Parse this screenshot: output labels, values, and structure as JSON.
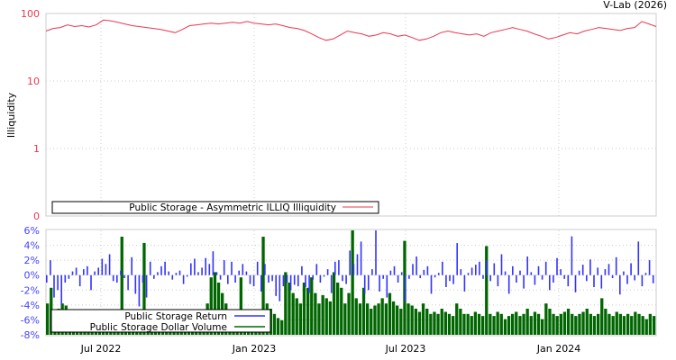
{
  "chart_data": [
    {
      "type": "line",
      "title": "",
      "credit": "V-Lab (2026)",
      "ylabel": "Illiquidity",
      "yscale": "log",
      "yticks": [
        "100",
        "10",
        "1",
        "0"
      ],
      "xticks": [
        "Jul 2022",
        "Jan 2023",
        "Jul 2023",
        "Jan 2024"
      ],
      "legend": "Public Storage - Asymmetric ILLIQ Illiquidity",
      "legend_position": "bottom-left",
      "grid": true,
      "color": "#e8384f",
      "values": [
        55,
        60,
        62,
        68,
        64,
        66,
        63,
        68,
        80,
        78,
        74,
        70,
        66,
        64,
        62,
        60,
        58,
        55,
        52,
        58,
        66,
        68,
        70,
        72,
        70,
        72,
        74,
        72,
        76,
        72,
        70,
        68,
        70,
        66,
        62,
        60,
        56,
        50,
        44,
        40,
        42,
        48,
        55,
        52,
        50,
        46,
        48,
        52,
        50,
        46,
        48,
        44,
        40,
        42,
        46,
        52,
        55,
        52,
        50,
        48,
        50,
        46,
        52,
        55,
        58,
        62,
        58,
        55,
        50,
        46,
        42,
        44,
        48,
        52,
        50,
        55,
        58,
        62,
        60,
        58,
        56,
        60,
        62,
        76,
        70,
        64
      ]
    },
    {
      "type": "bar",
      "yticks": [
        "6%",
        "4%",
        "2%",
        "0%",
        "-2%",
        "-4%",
        "-6%",
        "-8%"
      ],
      "ylim": [
        -8,
        6
      ],
      "xticks": [
        "Jul 2022",
        "Jan 2023",
        "Jul 2023",
        "Jan 2024"
      ],
      "grid": true,
      "series": [
        {
          "name": "Public Storage Return",
          "color": "#3333ff",
          "values": [
            -1,
            2,
            -3,
            -2,
            -4,
            -1,
            -0.5,
            0.5,
            1,
            -1.5,
            0.8,
            1.2,
            -2,
            0.5,
            1,
            2.2,
            1.5,
            2.8,
            -0.8,
            -1,
            0.6,
            -0.4,
            -2,
            2.4,
            -2.5,
            -4.2,
            -1,
            -3,
            1.8,
            -0.5,
            0.4,
            1.2,
            1.8,
            0.5,
            -0.6,
            0.3,
            0.6,
            -1.2,
            -0.2,
            1.6,
            2.2,
            0.4,
            1,
            2.3,
            1.5,
            3.2,
            0.4,
            -0.6,
            2,
            -1.2,
            1.8,
            -1,
            0.6,
            1.5,
            0.5,
            -1.2,
            -1.5,
            1.8,
            -2.2,
            1.5,
            -1,
            -0.8,
            -2.8,
            -3.5,
            -1.5,
            -1,
            -2,
            -1.3,
            -1.5,
            1.2,
            -1.6,
            -2.4,
            -0.6,
            1.5,
            -1,
            -0.2,
            0.8,
            -2.4,
            1.8,
            2,
            -0.8,
            -1.2,
            3.3,
            1.5,
            2.8,
            4.5,
            -2.5,
            -2,
            0.8,
            6,
            -2.2,
            -0.5,
            -3,
            0.6,
            1.2,
            -1,
            0.4,
            -3.5,
            -0.5,
            1.5,
            2.5,
            -0.4,
            0.7,
            1.2,
            -2.5,
            -0.3,
            0.3,
            1.8,
            -1.6,
            -0.8,
            -1.2,
            4.3,
            0.8,
            -2.2,
            0.3,
            1,
            1.4,
            1.8,
            -0.5,
            2,
            -0.8,
            1.6,
            -1.5,
            2.8,
            0.5,
            -2.5,
            1.2,
            -1,
            0.6,
            -1.8,
            2.5,
            0.4,
            -1.3,
            1.2,
            -0.6,
            1.8,
            -2,
            -1,
            2.3,
            0.8,
            -0.5,
            -1.5,
            5.2,
            -2.3,
            0.6,
            1.4,
            -0.8,
            2.1,
            -1.6,
            1,
            -1.8,
            0.8,
            1.5,
            -0.4,
            2.4,
            -2.6,
            0.5,
            -1.2,
            1.6,
            -0.7,
            4.5,
            -1.5,
            0.3,
            2,
            -1.1
          ]
        },
        {
          "name": "Public Storage Dollar Volume",
          "color": "#006600",
          "values_relative": [
            0.3,
            0.45,
            0.2,
            0.25,
            0.3,
            0.28,
            0.2,
            0.15,
            0.18,
            0.22,
            0.14,
            0.2,
            0.16,
            0.12,
            0.18,
            0.2,
            0.15,
            0.13,
            0.17,
            0.2,
            0.94,
            0.15,
            0.12,
            0.18,
            0.14,
            0.2,
            0.88,
            0.16,
            0.15,
            0.13,
            0.18,
            0.14,
            0.2,
            0.12,
            0.15,
            0.18,
            0.13,
            0.2,
            0.15,
            0.12,
            0.17,
            0.2,
            0.14,
            0.3,
            0.55,
            0.6,
            0.5,
            0.4,
            0.3,
            0.18,
            0.15,
            0.12,
            0.55,
            0.2,
            0.15,
            0.12,
            0.18,
            0.22,
            0.94,
            0.3,
            0.25,
            0.2,
            0.16,
            0.14,
            0.6,
            0.5,
            0.4,
            0.35,
            0.3,
            0.5,
            0.45,
            0.55,
            0.4,
            0.3,
            0.38,
            0.35,
            0.32,
            0.6,
            0.5,
            0.45,
            0.3,
            0.4,
            1,
            0.35,
            0.3,
            0.45,
            0.3,
            0.25,
            0.28,
            0.3,
            0.35,
            0.3,
            0.4,
            0.32,
            0.28,
            0.25,
            0.9,
            0.3,
            0.28,
            0.25,
            0.22,
            0.3,
            0.25,
            0.2,
            0.22,
            0.2,
            0.25,
            0.22,
            0.2,
            0.18,
            0.3,
            0.25,
            0.2,
            0.2,
            0.18,
            0.22,
            0.2,
            0.18,
            0.85,
            0.2,
            0.18,
            0.22,
            0.2,
            0.15,
            0.18,
            0.2,
            0.22,
            0.18,
            0.2,
            0.25,
            0.18,
            0.22,
            0.2,
            0.15,
            0.3,
            0.25,
            0.2,
            0.18,
            0.2,
            0.22,
            0.25,
            0.2,
            0.18,
            0.2,
            0.22,
            0.25,
            0.2,
            0.18,
            0.2,
            0.35,
            0.25,
            0.2,
            0.18,
            0.22,
            0.2,
            0.18,
            0.2,
            0.18,
            0.22,
            0.2,
            0.18,
            0.15,
            0.2,
            0.18
          ]
        }
      ],
      "legend_position": "bottom-left"
    }
  ]
}
